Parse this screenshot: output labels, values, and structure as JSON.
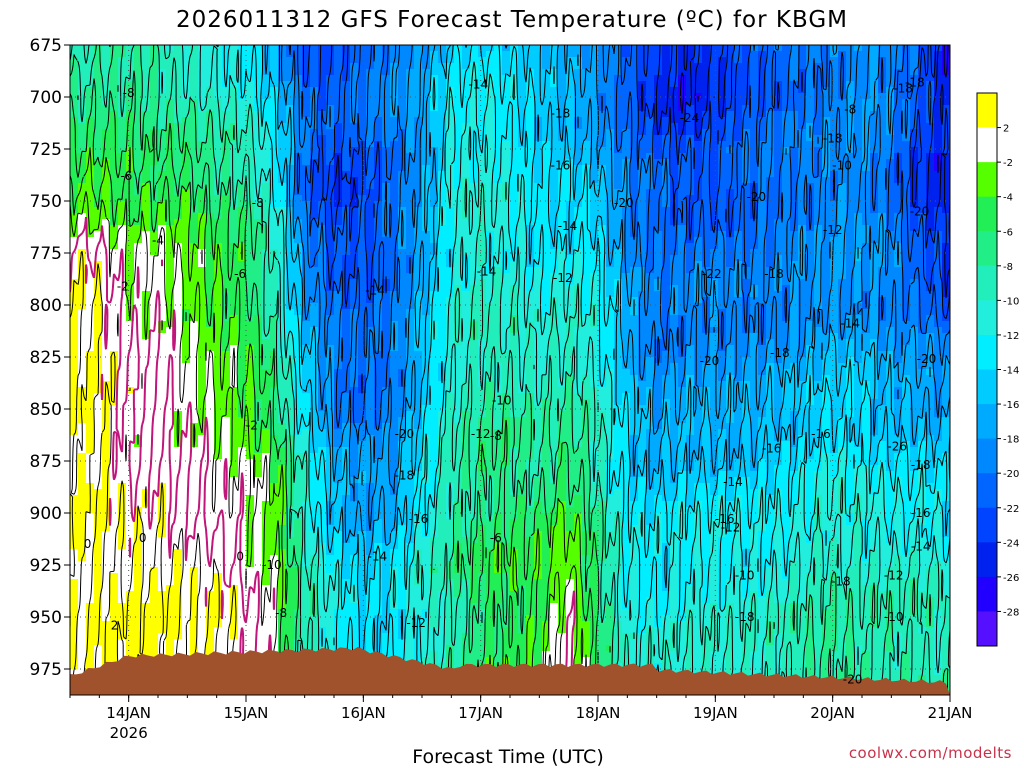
{
  "chart_data": {
    "type": "heatmap",
    "title": "2026011312 GFS Forecast Temperature (ºC) for KBGM",
    "xlabel": "Forecast Time (UTC)",
    "ylabel": "",
    "credit": "coolwx.com/modelts",
    "x_range_days": [
      13.5,
      21.0
    ],
    "y_levels": [
      "675",
      "700",
      "725",
      "750",
      "775",
      "800",
      "825",
      "850",
      "875",
      "900",
      "925",
      "950",
      "975"
    ],
    "x_ticks": [
      {
        "day": 14,
        "label": "14JAN",
        "sublabel": "2026"
      },
      {
        "day": 15,
        "label": "15JAN",
        "sublabel": ""
      },
      {
        "day": 16,
        "label": "16JAN",
        "sublabel": ""
      },
      {
        "day": 17,
        "label": "17JAN",
        "sublabel": ""
      },
      {
        "day": 18,
        "label": "18JAN",
        "sublabel": ""
      },
      {
        "day": 19,
        "label": "19JAN",
        "sublabel": ""
      },
      {
        "day": 20,
        "label": "20JAN",
        "sublabel": ""
      },
      {
        "day": 21,
        "label": "21JAN",
        "sublabel": ""
      }
    ],
    "colorbar": {
      "labels": [
        "2",
        "-2",
        "-4",
        "-6",
        "-8",
        "-10",
        "-12",
        "-14",
        "-16",
        "-18",
        "-20",
        "-22",
        "-24",
        "-26",
        "-28"
      ],
      "colors": [
        "#ffff00",
        "#ffffff",
        "#55ff00",
        "#22ee55",
        "#22ee88",
        "#22eebb",
        "#22eedd",
        "#00eeff",
        "#00ccff",
        "#00aaff",
        "#0088ff",
        "#0066ff",
        "#0044ff",
        "#0022ee",
        "#2200ff",
        "#5511ff"
      ]
    },
    "temperature_samples": {
      "days": [
        13.5,
        13.75,
        14.0,
        14.25,
        14.5,
        14.75,
        15.0,
        15.25,
        15.5,
        15.75,
        16.0,
        16.25,
        16.5,
        16.75,
        17.0,
        17.25,
        17.5,
        17.75,
        18.0,
        18.25,
        18.5,
        18.75,
        19.0,
        19.25,
        19.5,
        19.75,
        20.0,
        20.25,
        20.5,
        20.75,
        21.0
      ],
      "levels": [
        675,
        700,
        725,
        750,
        775,
        800,
        825,
        850,
        875,
        900,
        925,
        950,
        975
      ],
      "values": [
        [
          -10,
          -7,
          -6,
          -3,
          1,
          2,
          3,
          3,
          3,
          3,
          2,
          2,
          2
        ],
        [
          -9,
          -7,
          -6,
          -3,
          0,
          2,
          2,
          2,
          2,
          2,
          2,
          2,
          2
        ],
        [
          -8,
          -7,
          -6,
          -4,
          -2,
          -1,
          0,
          0,
          0,
          1,
          2,
          3,
          3
        ],
        [
          -9,
          -8,
          -7,
          -4,
          -2,
          -1,
          0,
          0,
          0,
          1,
          2,
          3,
          3
        ],
        [
          -10,
          -9,
          -7,
          -4,
          -3,
          -2,
          -2,
          -1,
          0,
          0,
          2,
          2,
          2
        ],
        [
          -11,
          -10,
          -8,
          -6,
          -5,
          -4,
          -3,
          -2,
          -1,
          -1,
          1,
          2,
          2
        ],
        [
          -12,
          -11,
          -9,
          -7,
          -6,
          -5,
          -4,
          -3,
          -2,
          -1,
          -1,
          1,
          1
        ],
        [
          -16,
          -15,
          -13,
          -11,
          -10,
          -9,
          -8,
          -6,
          -4,
          -3,
          -2,
          -2,
          -2
        ],
        [
          -22,
          -21,
          -20,
          -21,
          -19,
          -17,
          -15,
          -13,
          -11,
          -10,
          -9,
          -8,
          -8
        ],
        [
          -22,
          -22,
          -22,
          -24,
          -22,
          -20,
          -20,
          -19,
          -17,
          -15,
          -13,
          -12,
          -11
        ],
        [
          -20,
          -20,
          -21,
          -23,
          -22,
          -21,
          -21,
          -20,
          -18,
          -17,
          -15,
          -14,
          -13
        ],
        [
          -19,
          -19,
          -20,
          -21,
          -20,
          -20,
          -20,
          -19,
          -18,
          -16,
          -14,
          -13,
          -12
        ],
        [
          -18,
          -17,
          -17,
          -18,
          -17,
          -16,
          -16,
          -15,
          -14,
          -12,
          -11,
          -11,
          -11
        ],
        [
          -15,
          -13,
          -12,
          -12,
          -12,
          -11,
          -11,
          -10,
          -9,
          -8,
          -8,
          -9,
          -9
        ],
        [
          -14,
          -12,
          -11,
          -11,
          -10,
          -10,
          -9,
          -8,
          -7,
          -7,
          -6,
          -6,
          -6
        ],
        [
          -15,
          -13,
          -12,
          -12,
          -11,
          -10,
          -9,
          -8,
          -7,
          -6,
          -5,
          -5,
          -5
        ],
        [
          -16,
          -15,
          -14,
          -14,
          -13,
          -12,
          -10,
          -9,
          -8,
          -6,
          -5,
          -4,
          -4
        ],
        [
          -17,
          -16,
          -15,
          -14,
          -12,
          -11,
          -9,
          -8,
          -6,
          -4,
          -2,
          0,
          0
        ],
        [
          -19,
          -18,
          -17,
          -15,
          -13,
          -12,
          -11,
          -10,
          -9,
          -8,
          -7,
          -6,
          -6
        ],
        [
          -22,
          -21,
          -20,
          -19,
          -18,
          -17,
          -16,
          -15,
          -14,
          -13,
          -12,
          -11,
          -11
        ],
        [
          -24,
          -24,
          -22,
          -20,
          -20,
          -20,
          -19,
          -18,
          -16,
          -14,
          -13,
          -12,
          -11
        ],
        [
          -25,
          -25,
          -23,
          -21,
          -20,
          -19,
          -18,
          -17,
          -15,
          -13,
          -12,
          -11,
          -10
        ],
        [
          -24,
          -24,
          -22,
          -22,
          -20,
          -19,
          -18,
          -17,
          -15,
          -13,
          -12,
          -11,
          -10
        ],
        [
          -22,
          -22,
          -21,
          -21,
          -20,
          -19,
          -18,
          -17,
          -15,
          -13,
          -12,
          -11,
          -10
        ],
        [
          -21,
          -21,
          -20,
          -20,
          -20,
          -19,
          -18,
          -16,
          -14,
          -13,
          -11,
          -10,
          -9
        ],
        [
          -20,
          -20,
          -20,
          -19,
          -19,
          -18,
          -17,
          -15,
          -13,
          -12,
          -10,
          -9,
          -8
        ],
        [
          -19,
          -19,
          -19,
          -18,
          -18,
          -18,
          -16,
          -14,
          -12,
          -11,
          -9,
          -8,
          -7
        ],
        [
          -18,
          -18,
          -19,
          -18,
          -18,
          -18,
          -16,
          -14,
          -13,
          -11,
          -10,
          -9,
          -8
        ],
        [
          -18,
          -19,
          -20,
          -20,
          -19,
          -19,
          -18,
          -16,
          -14,
          -12,
          -10,
          -9,
          -8
        ],
        [
          -20,
          -22,
          -24,
          -24,
          -22,
          -20,
          -18,
          -16,
          -14,
          -12,
          -10,
          -9,
          -8
        ],
        [
          -26,
          -26,
          -25,
          -25,
          -24,
          -22,
          -19,
          -17,
          -15,
          -13,
          -11,
          -10,
          -9
        ]
      ]
    },
    "contour_labels": [
      "-8",
      "-6",
      "-4",
      "-2",
      "-8",
      "-6",
      "-2",
      "0",
      "0",
      "0",
      "2",
      "-10",
      "-8",
      "-14",
      "-20",
      "-18",
      "-16",
      "-14",
      "-12",
      "-14",
      "-18",
      "-16",
      "-14",
      "-14",
      "-12",
      "-10",
      "-12",
      "-8",
      "-6",
      "-24",
      "-20",
      "-20",
      "-22",
      "-18",
      "-20",
      "-18",
      "-18",
      "-16",
      "-14",
      "-12",
      "-10",
      "-18",
      "-16",
      "-18",
      "-20",
      "-16",
      "-14",
      "-12",
      "-10",
      "-8",
      "-18",
      "-18",
      "-20",
      "-26",
      "-24",
      "-20",
      "-18",
      "-16",
      "-14",
      "-12",
      "-10"
    ]
  }
}
